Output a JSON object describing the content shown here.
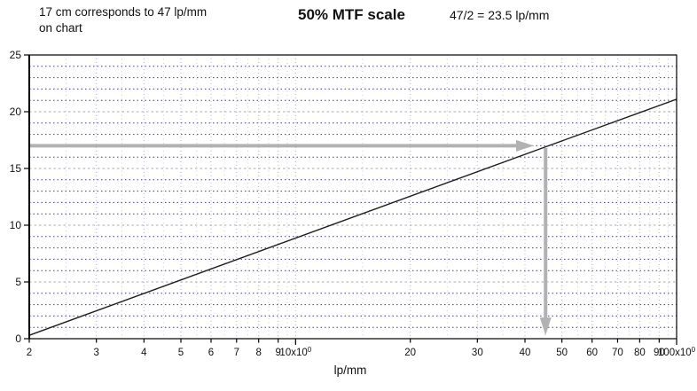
{
  "header": {
    "note_line1": "17 cm corresponds to 47 lp/mm",
    "note_line2": "on chart",
    "title": "50% MTF scale",
    "calculation": "47/2 = 23.5 lp/mm"
  },
  "chart_data": {
    "type": "line",
    "title": "50% MTF scale",
    "xlabel": "lp/mm",
    "ylabel": "",
    "x_scale": "log",
    "xlim": [
      2,
      100
    ],
    "ylim": [
      0,
      25
    ],
    "x_ticks": [
      {
        "v": 2,
        "label": "2"
      },
      {
        "v": 3,
        "label": "3"
      },
      {
        "v": 4,
        "label": "4"
      },
      {
        "v": 5,
        "label": "5"
      },
      {
        "v": 6,
        "label": "6"
      },
      {
        "v": 7,
        "label": "7"
      },
      {
        "v": 8,
        "label": "8"
      },
      {
        "v": 9,
        "label": "9"
      },
      {
        "v": 10,
        "label": "10x10^0"
      },
      {
        "v": 20,
        "label": "20"
      },
      {
        "v": 30,
        "label": "30"
      },
      {
        "v": 40,
        "label": "40"
      },
      {
        "v": 50,
        "label": "50"
      },
      {
        "v": 60,
        "label": "60"
      },
      {
        "v": 70,
        "label": "70"
      },
      {
        "v": 80,
        "label": "80"
      },
      {
        "v": 90,
        "label": "90"
      },
      {
        "v": 100,
        "label": "100x10^0"
      }
    ],
    "x_minor_gridlines": [
      2.5,
      3.5,
      4.5,
      5.5,
      6.5,
      7.5,
      8.5,
      9.5,
      15,
      25,
      35,
      45,
      55,
      65,
      75,
      85,
      95
    ],
    "y_ticks": [
      0,
      5,
      10,
      15,
      20,
      25
    ],
    "y_minor_grid_step": 1,
    "grid": true,
    "series": [
      {
        "name": "50% MTF scale line",
        "points": [
          [
            2,
            0.3
          ],
          [
            47,
            17.1
          ],
          [
            100,
            21.1
          ]
        ]
      }
    ],
    "key_point": {
      "x": 47,
      "y": 17
    },
    "arrows": [
      {
        "type": "horizontal",
        "y": 17,
        "x1": 2,
        "x2": 42.2
      },
      {
        "type": "vertical",
        "x": 45.3,
        "y1": 16.8,
        "y2": 0.3
      }
    ],
    "colors": {
      "axis": "#000000",
      "line": "#1c1c1c",
      "grid_minor_h": "#3f3f7d",
      "grid_major_h": "#a9a9a9",
      "grid_v": "#b8b8c6",
      "grid_v_minor": "#c9c9d6",
      "arrow": "#b2b2b2"
    }
  }
}
